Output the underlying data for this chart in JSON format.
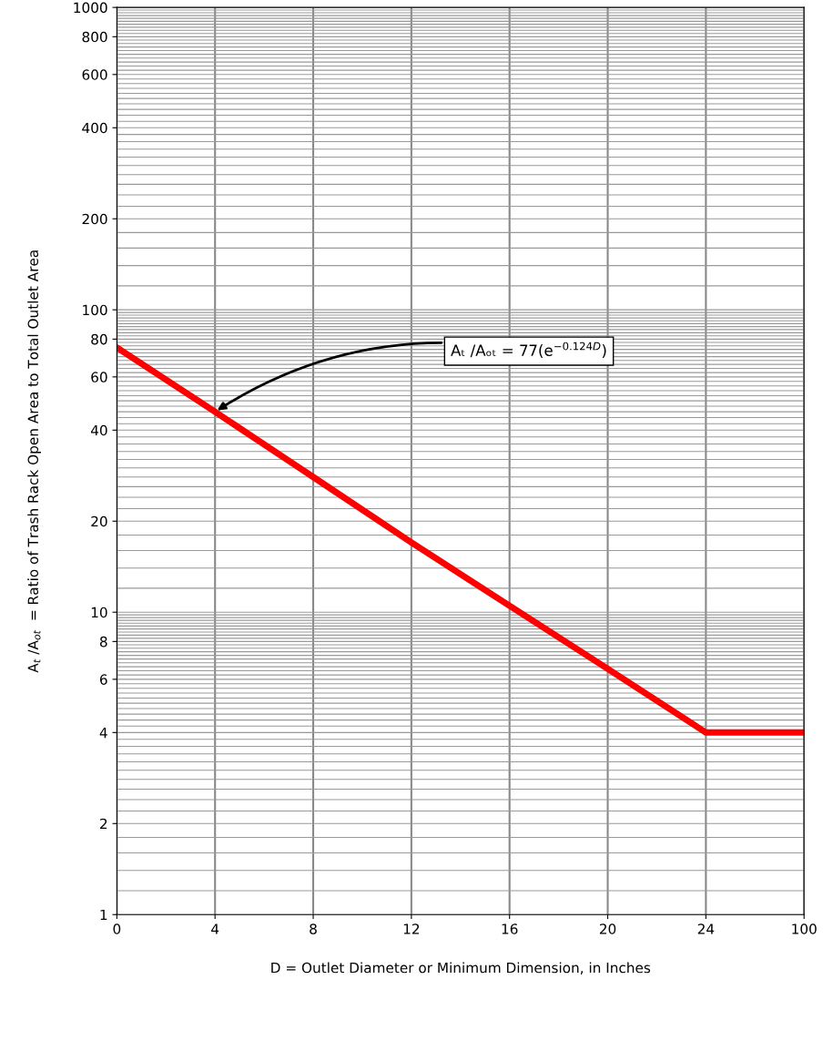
{
  "chart_data": {
    "type": "line",
    "xlabel": "D = Outlet Diameter or Minimum Dimension, in Inches",
    "ylabel": "A$_{t}$ /A$_{ot}$  = Ratio of Trash Rack Open Area to Total Outlet Area",
    "categories": [
      "0",
      "4",
      "8",
      "12",
      "16",
      "20",
      "24",
      "100"
    ],
    "series": [
      {
        "color": "#ff0000",
        "values": [
          75,
          46,
          28,
          17,
          10.5,
          6.5,
          4,
          4
        ]
      }
    ],
    "log": "y",
    "ylim": [
      1,
      1000
    ],
    "yticks": [
      1,
      2,
      4,
      6,
      8,
      10,
      20,
      40,
      60,
      80,
      100,
      200,
      400,
      600,
      800,
      1000
    ],
    "grid": true,
    "marker": "none",
    "line_style": "solid",
    "annotations": [
      {
        "text": "Aₜ /Aₒₜ = 77(e$^{−0.124D}$)",
        "x": "4",
        "y": 46
      }
    ]
  }
}
